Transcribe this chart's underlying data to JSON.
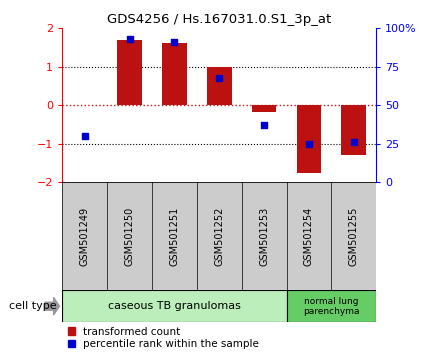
{
  "title": "GDS4256 / Hs.167031.0.S1_3p_at",
  "samples": [
    "GSM501249",
    "GSM501250",
    "GSM501251",
    "GSM501252",
    "GSM501253",
    "GSM501254",
    "GSM501255"
  ],
  "transformed_count": [
    0.02,
    1.7,
    1.63,
    1.0,
    -0.18,
    -1.75,
    -1.3
  ],
  "percentile_rank": [
    30,
    93,
    91,
    68,
    37,
    25,
    26
  ],
  "ylim": [
    -2,
    2
  ],
  "y2lim": [
    0,
    100
  ],
  "bar_color": "#BB1111",
  "dot_color": "#0000CC",
  "cell_type_label": "cell type",
  "ct_group1_label": "caseous TB granulomas",
  "ct_group1_color": "#BBEEBB",
  "ct_group2_label": "normal lung\nparenchyma",
  "ct_group2_color": "#66CC66",
  "legend_items": [
    {
      "color": "#BB1111",
      "label": "transformed count"
    },
    {
      "color": "#0000CC",
      "label": "percentile rank within the sample"
    }
  ],
  "background_color": "#ffffff",
  "label_bg_color": "#CCCCCC",
  "yticks_left": [
    -2,
    -1,
    0,
    1,
    2
  ],
  "yticks_right": [
    0,
    25,
    50,
    75,
    100
  ],
  "ytick_right_labels": [
    "0",
    "25",
    "50",
    "75",
    "100%"
  ]
}
